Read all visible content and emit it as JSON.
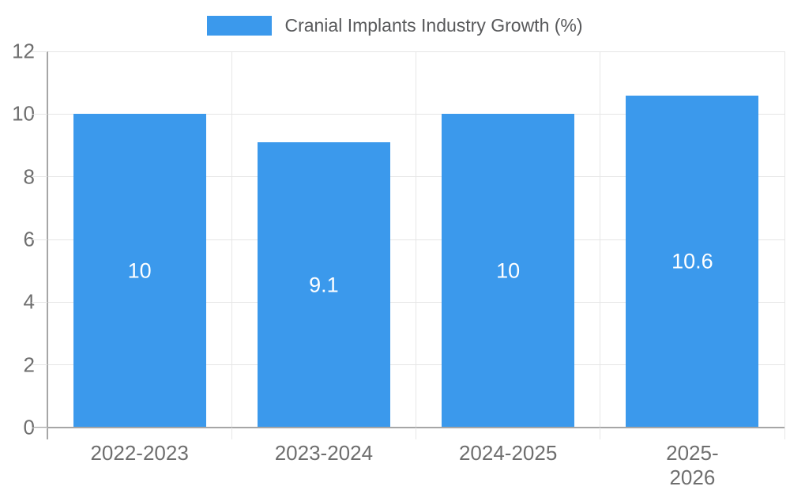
{
  "legend": {
    "label": "Cranial Implants Industry Growth (%)"
  },
  "chart_data": {
    "type": "bar",
    "title": "Cranial Implants Industry Growth (%)",
    "categories": [
      "2022-2023",
      "2023-2024",
      "2024-2025",
      "2025-2026"
    ],
    "values": [
      10,
      9.1,
      10,
      10.6
    ],
    "value_labels": [
      "10",
      "9.1",
      "10",
      "10.6"
    ],
    "xlabel": "",
    "ylabel": "",
    "ylim": [
      0,
      12
    ],
    "yticks": [
      0,
      2,
      4,
      6,
      8,
      10,
      12
    ],
    "grid": true,
    "legend_position": "top-center",
    "value_label_position": "inside-center"
  },
  "colors": {
    "bar": "#3B99EC",
    "bar_value_text": "#ffffff",
    "gridline": "#e6e6e6",
    "axis_line": "#a6a6a6",
    "tick_text": "#6e6e6e",
    "legend_text": "#58595b"
  }
}
